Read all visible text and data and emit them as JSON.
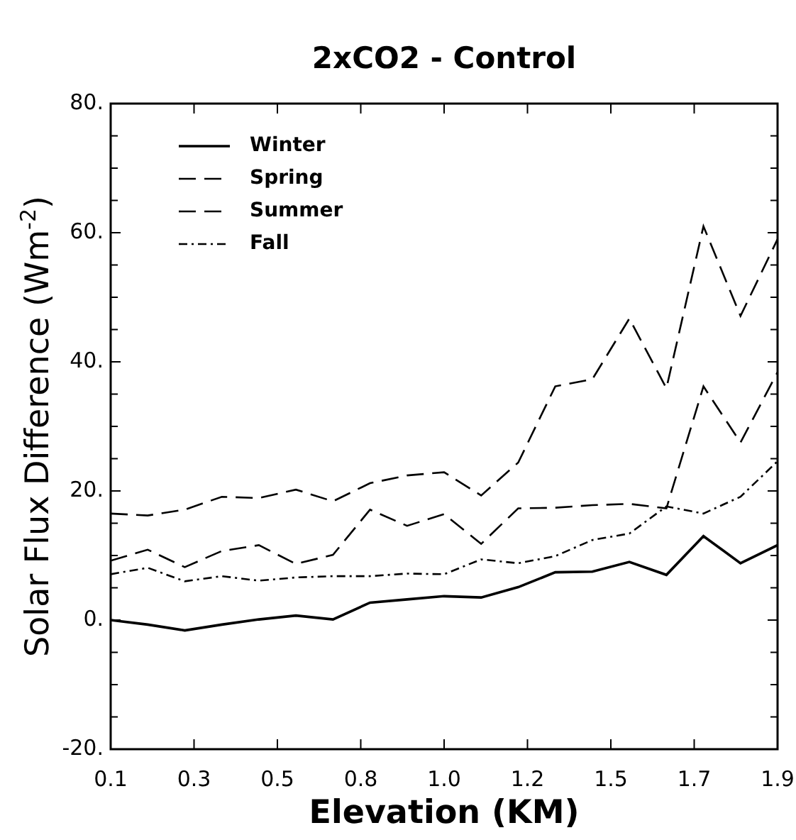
{
  "chart_data": {
    "type": "line",
    "title": "2xCO2 - Control",
    "xlabel": "Elevation (KM)",
    "ylabel": "Solar Flux Difference (Wm$^{-2}$)",
    "x": [
      0.1,
      0.2,
      0.3,
      0.4,
      0.5,
      0.6,
      0.7,
      0.8,
      0.9,
      1.0,
      1.1,
      1.2,
      1.3,
      1.4,
      1.5,
      1.6,
      1.7,
      1.8,
      1.9
    ],
    "series": [
      {
        "name": "Winter",
        "color": "#000000",
        "line_style": "solid",
        "values": [
          0,
          -0.7,
          -1.6,
          -0.7,
          0.1,
          0.7,
          0.1,
          2.7,
          3.2,
          3.7,
          3.5,
          5.1,
          7.4,
          7.5,
          9.0,
          7.0,
          13.0,
          8.8,
          11.6
        ]
      },
      {
        "name": "Spring",
        "color": "#000000",
        "line_style": "dashed",
        "values": [
          16.5,
          16.2,
          17.1,
          19.1,
          18.9,
          20.2,
          18.4,
          21.2,
          22.4,
          22.9,
          19.3,
          24.4,
          36.2,
          37.3,
          46.7,
          35.9,
          61,
          47.1,
          59
        ]
      },
      {
        "name": "Summer",
        "color": "#000000",
        "line_style": "dashed",
        "values": [
          9.2,
          10.9,
          8.2,
          10.7,
          11.6,
          8.7,
          10.1,
          17.1,
          14.6,
          16.4,
          11.8,
          17.3,
          17.4,
          17.8,
          18.0,
          17.3,
          36.2,
          27.5,
          38.4
        ]
      },
      {
        "name": "Fall",
        "color": "#000000",
        "line_style": "dotted",
        "values": [
          7.1,
          8.1,
          6.0,
          6.8,
          6.1,
          6.6,
          6.8,
          6.8,
          7.2,
          7.1,
          9.4,
          8.8,
          9.9,
          12.4,
          13.4,
          17.6,
          16.5,
          19.1,
          24.6
        ]
      }
    ],
    "xlim": [
      0.1,
      1.9
    ],
    "xticks": [
      0.1,
      {
        "value": 0.325,
        "label": "0.3"
      },
      {
        "value": 0.55,
        "label": "0.5"
      },
      {
        "value": 0.775,
        "label": "0.8"
      },
      {
        "value": 1.0,
        "label": "1.0"
      },
      {
        "value": 1.225,
        "label": "1.2"
      },
      {
        "value": 1.45,
        "label": "1.5"
      },
      {
        "value": 1.675,
        "label": "1.7"
      },
      {
        "value": 1.9,
        "label": "1.9"
      }
    ],
    "ylim": [
      -20,
      80
    ],
    "yticks": [
      {
        "value": -20,
        "label": "-20."
      },
      {
        "value": -15,
        "label": null
      },
      {
        "value": -10,
        "label": null
      },
      {
        "value": -5,
        "label": null
      },
      {
        "value": 0,
        "label": "0."
      },
      {
        "value": 5,
        "label": null
      },
      {
        "value": 10,
        "label": null
      },
      {
        "value": 15,
        "label": null
      },
      {
        "value": 20,
        "label": "20."
      },
      {
        "value": 25,
        "label": null
      },
      {
        "value": 30,
        "label": null
      },
      {
        "value": 35,
        "label": null
      },
      {
        "value": 40,
        "label": "40."
      },
      {
        "value": 45,
        "label": null
      },
      {
        "value": 50,
        "label": null
      },
      {
        "value": 55,
        "label": null
      },
      {
        "value": 60,
        "label": "60."
      },
      {
        "value": 65,
        "label": null
      },
      {
        "value": 70,
        "label": null
      },
      {
        "value": 75,
        "label": null
      },
      {
        "value": 80,
        "label": "80."
      }
    ],
    "grid": false,
    "legend": "top left"
  }
}
